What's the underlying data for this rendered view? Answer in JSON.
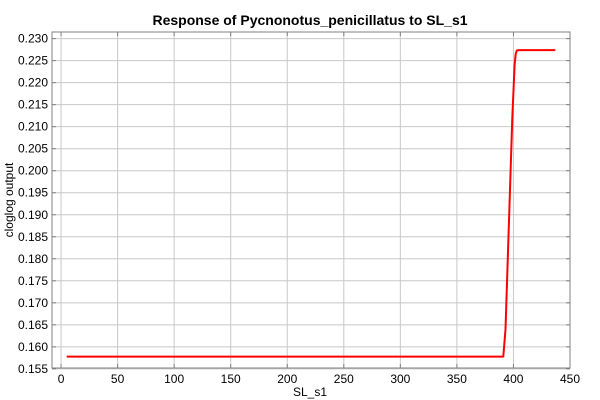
{
  "chart_data": {
    "type": "line",
    "title": "Response of Pycnonotus_penicillatus to SL_s1",
    "xlabel": "SL_s1",
    "ylabel": "cloglog output",
    "xlim": [
      -8,
      450
    ],
    "ylim": [
      0.1552,
      0.2315
    ],
    "xticks": [
      0,
      50,
      100,
      150,
      200,
      250,
      300,
      350,
      400,
      450
    ],
    "yticks": [
      0.155,
      0.16,
      0.165,
      0.17,
      0.175,
      0.18,
      0.185,
      0.19,
      0.195,
      0.2,
      0.205,
      0.21,
      0.215,
      0.22,
      0.225,
      0.23
    ],
    "grid": true,
    "series": [
      {
        "color": "#ff0000",
        "x": [
          5,
          391,
          393,
          396,
          399,
          401,
          402,
          403,
          405,
          437
        ],
        "y": [
          0.1578,
          0.1578,
          0.164,
          0.188,
          0.212,
          0.224,
          0.2265,
          0.2273,
          0.2274,
          0.2274
        ]
      }
    ]
  }
}
